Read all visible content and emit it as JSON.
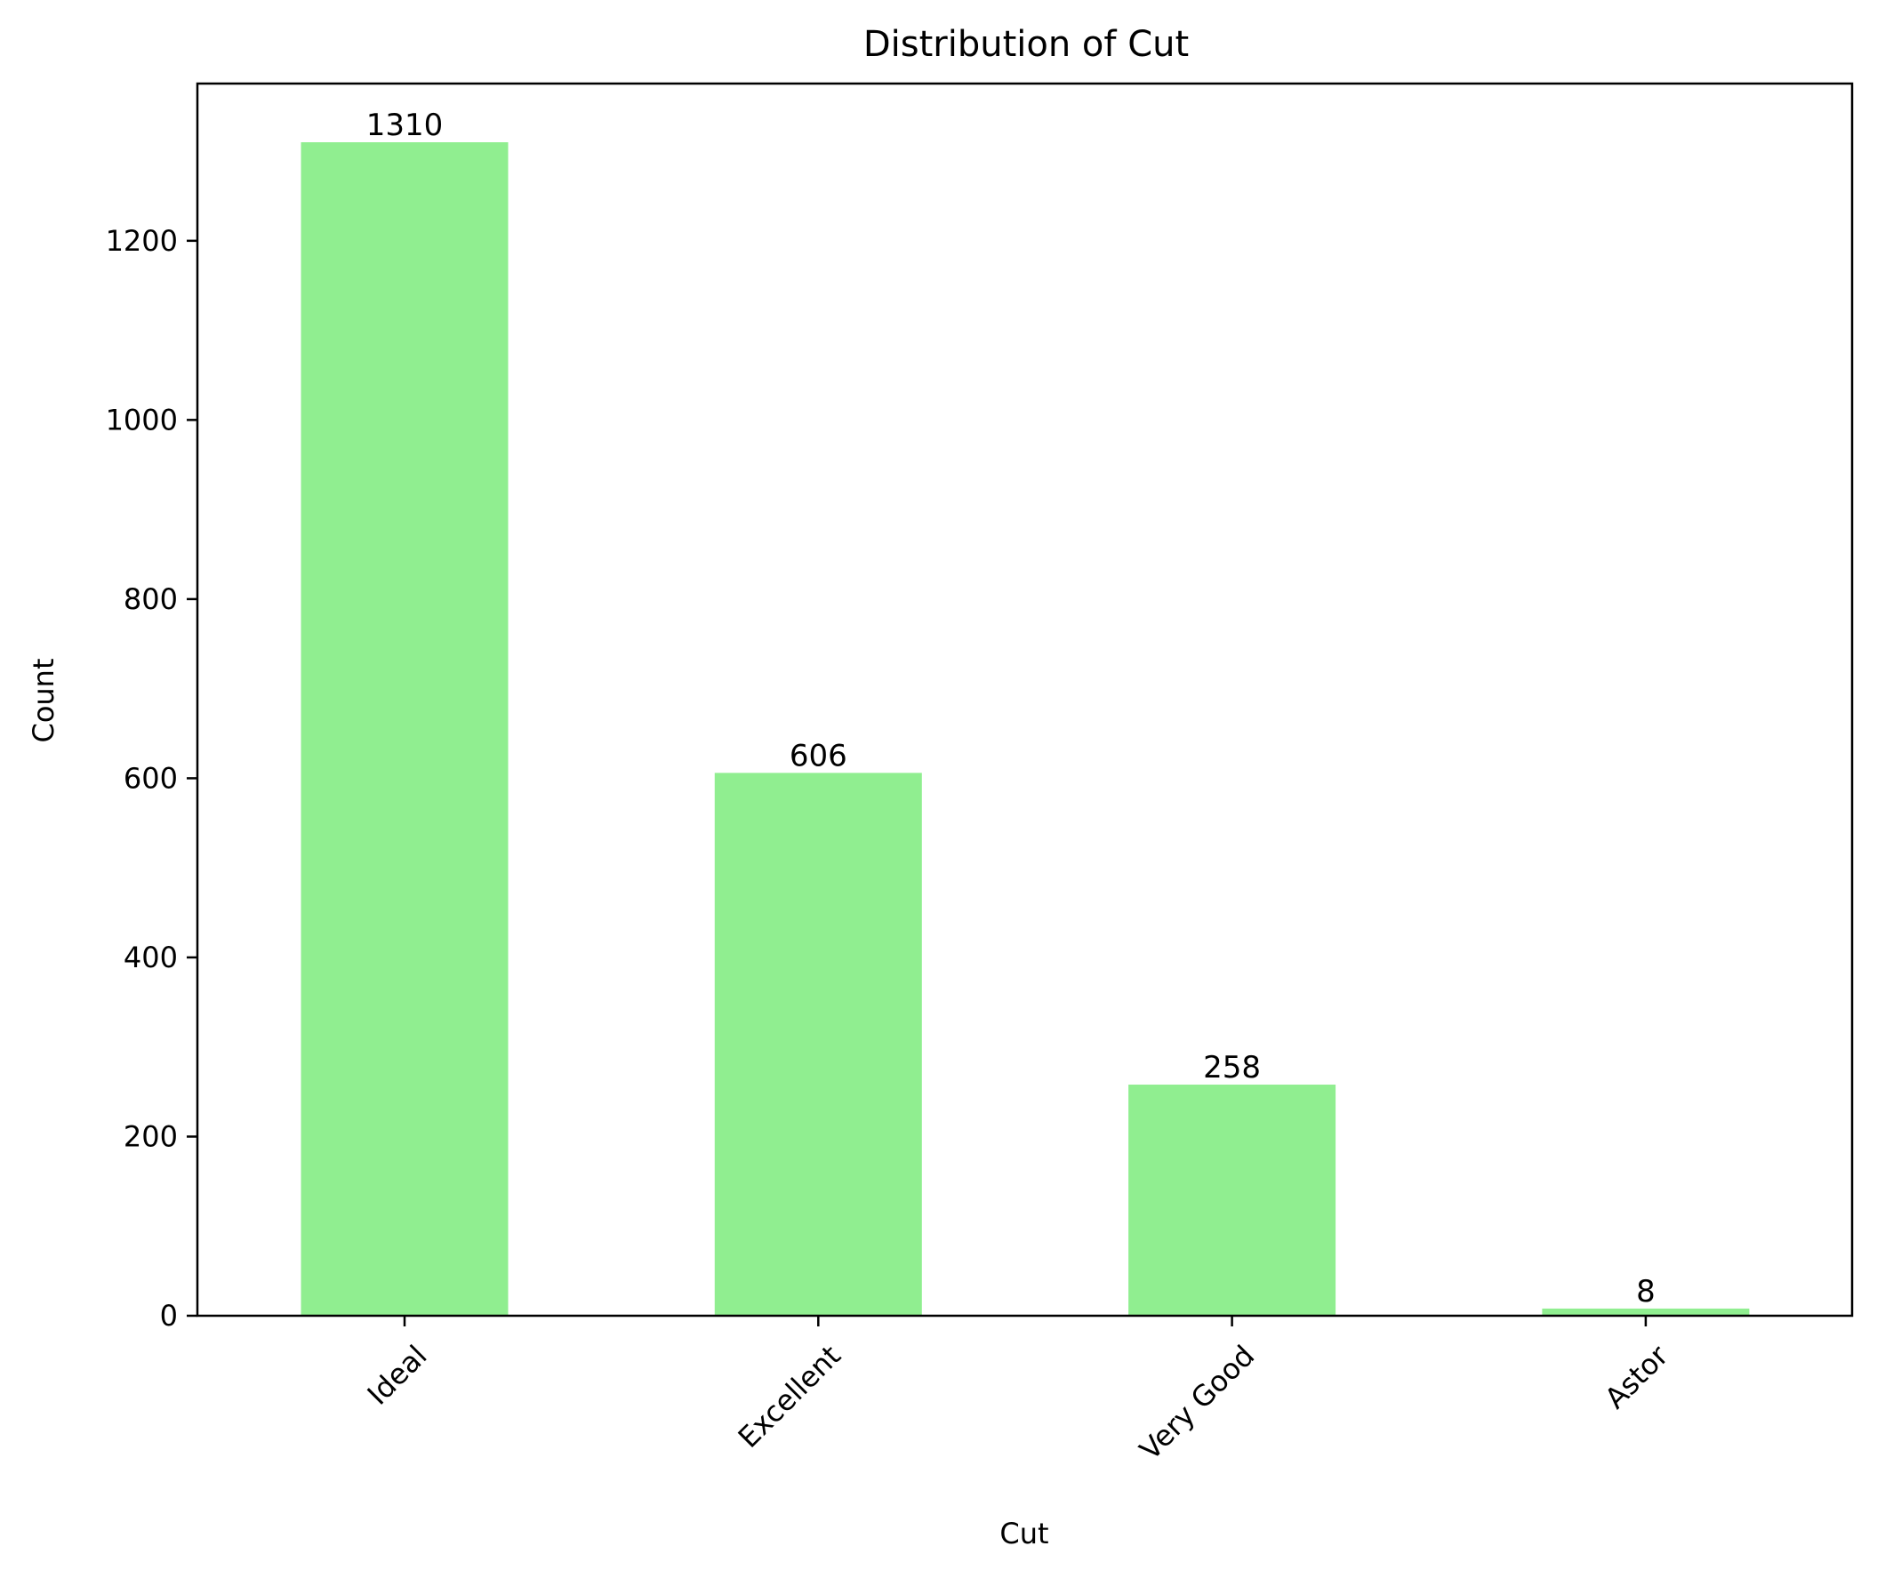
{
  "chart_data": {
    "type": "bar",
    "title": "Distribution of Cut",
    "xlabel": "Cut",
    "ylabel": "Count",
    "categories": [
      "Ideal",
      "Excellent",
      "Very Good",
      "Astor"
    ],
    "values": [
      1310,
      606,
      258,
      8
    ],
    "data_labels": [
      "1310",
      "606",
      "258",
      "8"
    ],
    "ylim": [
      0,
      1375.5
    ],
    "yticks": [
      0,
      200,
      400,
      600,
      800,
      1000,
      1200
    ],
    "ytick_labels": [
      "0",
      "200",
      "400",
      "600",
      "800",
      "1000",
      "1200"
    ],
    "bar_color": "#90ee90",
    "grid": false,
    "legend": "none",
    "xtick_rotation_deg": 45
  }
}
